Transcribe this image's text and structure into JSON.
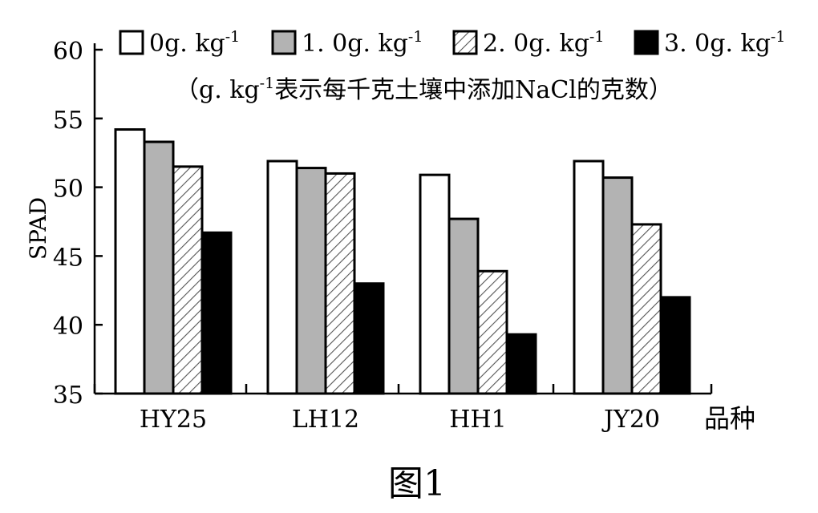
{
  "chart_data": {
    "type": "bar",
    "ylabel": "SPAD",
    "xlabel": "品种",
    "categories": [
      "HY25",
      "LH12",
      "HH1",
      "JY20"
    ],
    "series": [
      {
        "name": "0g. kg",
        "name_sup": "-1",
        "pattern": "white",
        "values": [
          54.2,
          51.9,
          50.9,
          51.9
        ]
      },
      {
        "name": "1. 0g. kg",
        "name_sup": "-1",
        "pattern": "gray",
        "values": [
          53.3,
          51.4,
          47.7,
          50.7
        ]
      },
      {
        "name": "2. 0g. kg",
        "name_sup": "-1",
        "pattern": "hatch",
        "values": [
          51.5,
          51.0,
          43.9,
          47.3
        ]
      },
      {
        "name": "3. 0g. kg",
        "name_sup": "-1",
        "pattern": "black",
        "values": [
          46.7,
          43.0,
          39.3,
          42.0
        ]
      }
    ],
    "ylim": [
      35,
      60
    ],
    "yticks": [
      35,
      40,
      45,
      50,
      55,
      60
    ],
    "note": {
      "open": "（g. kg",
      "sup": "-1",
      "rest": "表示每千克土壤中添加NaCl的克数）"
    },
    "caption": "图1"
  },
  "colors": {
    "gray": "#b3b3b3",
    "black": "#000000",
    "white": "#ffffff"
  }
}
